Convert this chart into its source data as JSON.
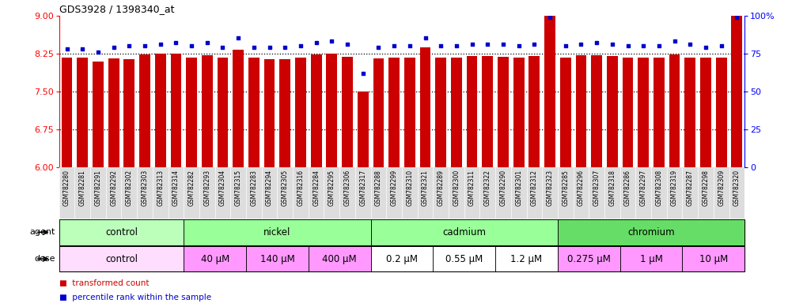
{
  "title": "GDS3928 / 1398340_at",
  "samples": [
    "GSM782280",
    "GSM782281",
    "GSM782291",
    "GSM782292",
    "GSM782302",
    "GSM782303",
    "GSM782313",
    "GSM782314",
    "GSM782282",
    "GSM782293",
    "GSM782304",
    "GSM782315",
    "GSM782283",
    "GSM782294",
    "GSM782305",
    "GSM782316",
    "GSM782284",
    "GSM782295",
    "GSM782306",
    "GSM782317",
    "GSM782288",
    "GSM782299",
    "GSM782310",
    "GSM782321",
    "GSM782289",
    "GSM782300",
    "GSM782311",
    "GSM782322",
    "GSM782290",
    "GSM782301",
    "GSM782312",
    "GSM782323",
    "GSM782285",
    "GSM782296",
    "GSM782307",
    "GSM782318",
    "GSM782286",
    "GSM782297",
    "GSM782308",
    "GSM782319",
    "GSM782287",
    "GSM782298",
    "GSM782309",
    "GSM782320"
  ],
  "bar_values": [
    8.17,
    8.17,
    8.08,
    8.15,
    8.13,
    8.23,
    8.24,
    8.25,
    8.17,
    8.21,
    8.16,
    8.32,
    8.16,
    8.14,
    8.14,
    8.16,
    8.23,
    8.24,
    8.18,
    7.5,
    8.15,
    8.16,
    8.16,
    8.37,
    8.16,
    8.16,
    8.19,
    8.19,
    8.18,
    8.16,
    8.19,
    9.0,
    8.16,
    8.21,
    8.21,
    8.19,
    8.16,
    8.17,
    8.16,
    8.23,
    8.17,
    8.16,
    8.17,
    9.05
  ],
  "percentile_values": [
    78,
    78,
    76,
    79,
    80,
    80,
    81,
    82,
    80,
    82,
    79,
    85,
    79,
    79,
    79,
    80,
    82,
    83,
    81,
    62,
    79,
    80,
    80,
    85,
    80,
    80,
    81,
    81,
    81,
    80,
    81,
    99,
    80,
    81,
    82,
    81,
    80,
    80,
    80,
    83,
    81,
    79,
    80,
    99
  ],
  "ylim_left": [
    6,
    9
  ],
  "ylim_right": [
    0,
    100
  ],
  "yticks_left": [
    6.0,
    6.75,
    7.5,
    8.25,
    9.0
  ],
  "yticks_right": [
    0,
    25,
    50,
    75,
    100
  ],
  "hlines": [
    6.75,
    7.5,
    8.25
  ],
  "bar_color": "#CC0000",
  "dot_color": "#0000CC",
  "xtick_bg": "#DDDDDD",
  "agent_groups": [
    {
      "label": "control",
      "start": 0,
      "end": 7,
      "color": "#BBFFBB"
    },
    {
      "label": "nickel",
      "start": 8,
      "end": 19,
      "color": "#99FF99"
    },
    {
      "label": "cadmium",
      "start": 20,
      "end": 31,
      "color": "#99FF99"
    },
    {
      "label": "chromium",
      "start": 32,
      "end": 43,
      "color": "#66DD66"
    }
  ],
  "dose_groups": [
    {
      "label": "control",
      "start": 0,
      "end": 7,
      "color": "#FFDDFF"
    },
    {
      "label": "40 μM",
      "start": 8,
      "end": 11,
      "color": "#FF99FF"
    },
    {
      "label": "140 μM",
      "start": 12,
      "end": 15,
      "color": "#FF99FF"
    },
    {
      "label": "400 μM",
      "start": 16,
      "end": 19,
      "color": "#FF99FF"
    },
    {
      "label": "0.2 μM",
      "start": 20,
      "end": 23,
      "color": "#FFFFFF"
    },
    {
      "label": "0.55 μM",
      "start": 24,
      "end": 27,
      "color": "#FFFFFF"
    },
    {
      "label": "1.2 μM",
      "start": 28,
      "end": 31,
      "color": "#FFFFFF"
    },
    {
      "label": "0.275 μM",
      "start": 32,
      "end": 35,
      "color": "#FF99FF"
    },
    {
      "label": "1 μM",
      "start": 36,
      "end": 39,
      "color": "#FF99FF"
    },
    {
      "label": "10 μM",
      "start": 40,
      "end": 43,
      "color": "#FF99FF"
    }
  ],
  "legend_items": [
    {
      "label": "transformed count",
      "color": "#CC0000",
      "marker": "s"
    },
    {
      "label": "percentile rank within the sample",
      "color": "#0000CC",
      "marker": "s"
    }
  ]
}
